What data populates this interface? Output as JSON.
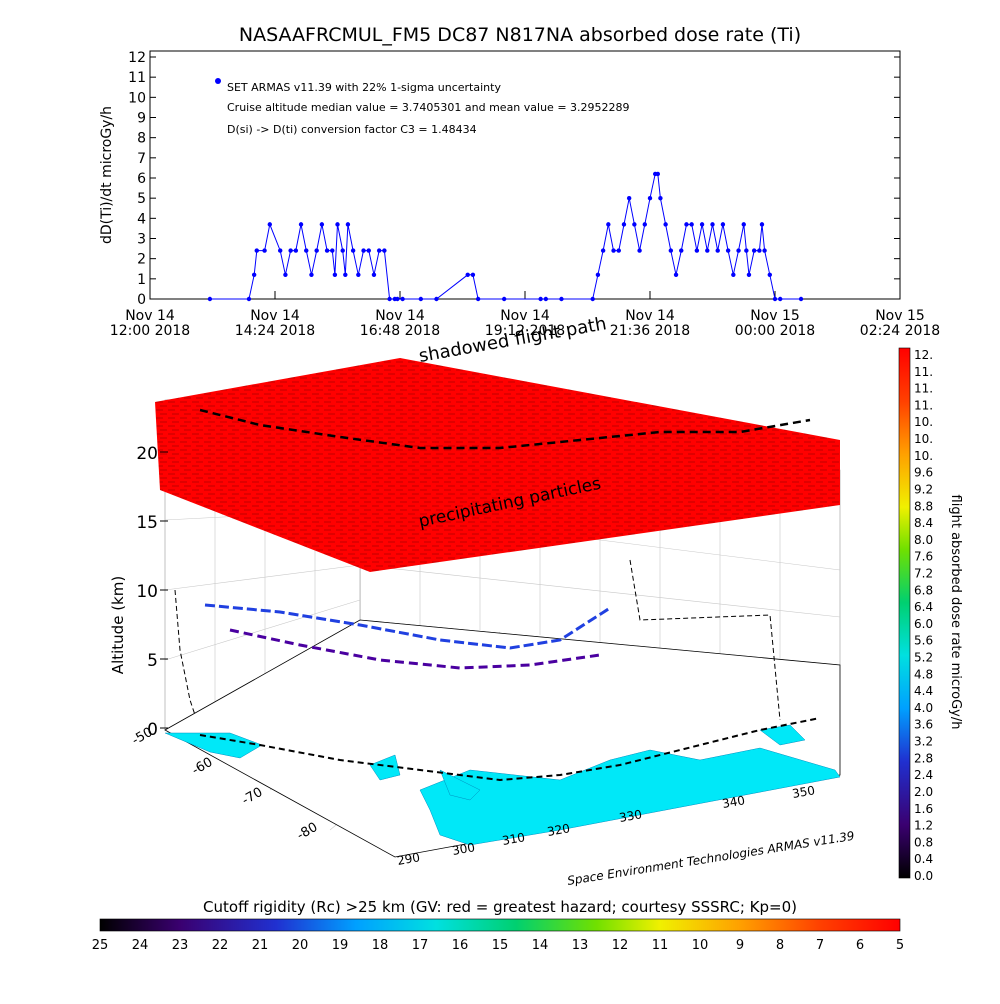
{
  "chart_data": [
    {
      "type": "line",
      "title": "NASAAFRCMUL_FM5 DC87 N817NA absorbed dose rate (Ti)",
      "ylabel": "dD(Ti)/dt microGy/h",
      "xlabel": "",
      "ylim": [
        0,
        12
      ],
      "yticks": [
        "0",
        "1",
        "2",
        "3",
        "4",
        "5",
        "6",
        "7",
        "8",
        "9",
        "10",
        "11",
        "12"
      ],
      "xlim_hours": [
        0,
        14.4
      ],
      "xticks": [
        {
          "hours": 0.0,
          "line1": "Nov 14",
          "line2": "12:00 2018"
        },
        {
          "hours": 2.4,
          "line1": "Nov 14",
          "line2": "14:24 2018"
        },
        {
          "hours": 4.8,
          "line1": "Nov 14",
          "line2": "16:48 2018"
        },
        {
          "hours": 7.2,
          "line1": "Nov 14",
          "line2": "19:12 2018"
        },
        {
          "hours": 9.6,
          "line1": "Nov 14",
          "line2": "21:36 2018"
        },
        {
          "hours": 12.0,
          "line1": "Nov 15",
          "line2": "00:00 2018"
        },
        {
          "hours": 14.4,
          "line1": "Nov 15",
          "line2": "02:24 2018"
        }
      ],
      "legend": {
        "marker": "dot",
        "lines": [
          "SET ARMAS v11.39 with 22% 1-sigma uncertainty",
          "Cruise altitude median value = 3.7405301 and mean value = 3.2952289",
          "D(si) -> D(ti) conversion factor C3 = 1.48434"
        ]
      },
      "series": [
        {
          "color": "#0000ff",
          "x_hours": [
            1.15,
            1.9,
            2.0,
            2.05,
            2.2,
            2.3,
            2.5,
            2.6,
            2.7,
            2.8,
            2.9,
            3.0,
            3.1,
            3.2,
            3.3,
            3.4,
            3.5,
            3.55,
            3.6,
            3.7,
            3.75,
            3.8,
            3.9,
            4.0,
            4.1,
            4.2,
            4.3,
            4.4,
            4.5,
            4.6,
            4.7,
            4.75,
            4.85,
            5.2,
            5.5,
            6.1,
            6.2,
            6.3,
            6.8,
            7.5,
            7.6,
            7.9,
            8.5,
            8.6,
            8.7,
            8.8,
            8.9,
            9.0,
            9.1,
            9.2,
            9.3,
            9.4,
            9.5,
            9.6,
            9.7,
            9.75,
            9.8,
            9.9,
            10.0,
            10.1,
            10.2,
            10.3,
            10.4,
            10.5,
            10.6,
            10.7,
            10.8,
            10.9,
            11.0,
            11.1,
            11.2,
            11.3,
            11.4,
            11.45,
            11.5,
            11.6,
            11.7,
            11.75,
            11.8,
            11.9,
            12.0,
            12.1,
            12.5
          ],
          "y": [
            0,
            0,
            1.2,
            2.4,
            2.4,
            3.7,
            2.4,
            1.2,
            2.4,
            2.4,
            3.7,
            2.4,
            1.2,
            2.4,
            3.7,
            2.4,
            2.4,
            1.2,
            3.7,
            2.4,
            1.2,
            3.7,
            2.4,
            1.2,
            2.4,
            2.4,
            1.2,
            2.4,
            2.4,
            0,
            0,
            0,
            0,
            0,
            0,
            1.2,
            1.2,
            0,
            0,
            0,
            0,
            0,
            0,
            1.2,
            2.4,
            3.7,
            2.4,
            2.4,
            3.7,
            5.0,
            3.7,
            2.4,
            3.7,
            5.0,
            6.2,
            6.2,
            5.0,
            3.7,
            2.4,
            1.2,
            2.4,
            3.7,
            3.7,
            2.4,
            3.7,
            2.4,
            3.7,
            2.4,
            3.7,
            2.4,
            1.2,
            2.4,
            3.7,
            2.4,
            1.2,
            2.4,
            2.4,
            3.7,
            2.4,
            1.2,
            0,
            0,
            0
          ]
        }
      ]
    },
    {
      "type": "3d-surface",
      "ylabel": "Altitude (km)",
      "zticks": [
        "0",
        "5",
        "10",
        "15",
        "20"
      ],
      "zlim": [
        0,
        22
      ],
      "lat_ticks": [
        "-50",
        "-60",
        "-70",
        "-80"
      ],
      "lon_ticks": [
        "290",
        "300",
        "310",
        "320",
        "330",
        "340",
        "350"
      ],
      "annotations": [
        "shadowed flight path",
        "precipitating particles"
      ],
      "credit": "Space Environment Technologies ARMAS v11.39",
      "colorbar_right": {
        "label": "flight absorbed dose rate microGy/h",
        "ticks": [
          "12.",
          "11.",
          "11.",
          "11.",
          "10.",
          "10.",
          "10.",
          "9.6",
          "9.2",
          "8.8",
          "8.4",
          "8.0",
          "7.6",
          "7.2",
          "6.8",
          "6.4",
          "6.0",
          "5.6",
          "5.2",
          "4.8",
          "4.4",
          "4.0",
          "3.6",
          "3.2",
          "2.8",
          "2.4",
          "2.0",
          "1.6",
          "1.2",
          "0.8",
          "0.4",
          "0.0"
        ]
      },
      "colorbar_bottom": {
        "label": "Cutoff rigidity (Rc) >25 km (GV: red = greatest hazard; courtesy SSSRC; Kp=0)",
        "ticks": [
          "25",
          "24",
          "23",
          "22",
          "21",
          "20",
          "19",
          "18",
          "17",
          "16",
          "15",
          "14",
          "13",
          "12",
          "11",
          "10",
          "9",
          "8",
          "7",
          "6",
          "5"
        ]
      }
    }
  ]
}
